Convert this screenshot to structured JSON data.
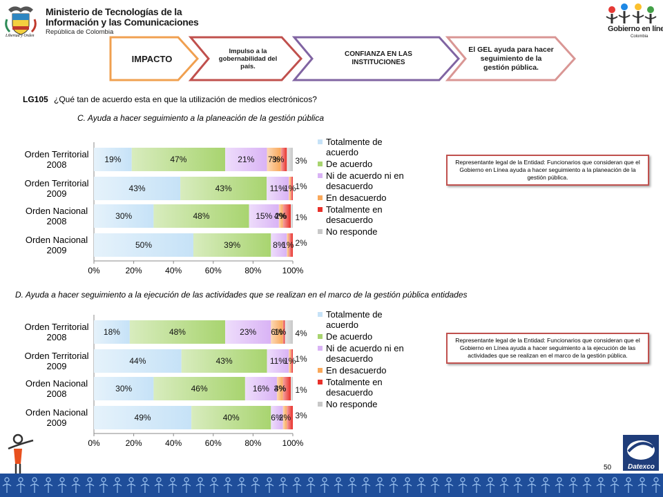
{
  "header": {
    "ministry_line1": "Ministerio de Tecnologías de la",
    "ministry_line2": "Información y las Comunicaciones",
    "ministry_line3": "República de Colombia",
    "motto": "Libertad y Orden",
    "gel_name": "Gobierno en línea",
    "gel_country": "Colombia"
  },
  "chevrons": [
    {
      "label": "IMPACTO",
      "fill": "#ffffff",
      "border": "#f0a050"
    },
    {
      "label": "Impulso a la gobernabilidad del país.",
      "fill": "#ffffff",
      "border": "#c0504d"
    },
    {
      "label": "CONFIANZA EN LAS INSTITUCIONES",
      "fill": "#ffffff",
      "border": "#8064a2"
    },
    {
      "label": "El GEL ayuda para hacer seguimiento de la gestión pública.",
      "fill": "#ffffff",
      "border": "#d99694"
    }
  ],
  "question": {
    "code": "LG105",
    "text": "¿Qué  tan de acuerdo esta en que la utilización de medios electrónicos?"
  },
  "notes": [
    "Representante legal de la Entidad: Funcionarios  que consideran que el Gobierno en Línea ayuda a hacer seguimiento a la planeación de la gestión pública.",
    "Representante legal de la Entidad: Funcionarios que consideran que el Gobierno en Línea ayuda a hacer seguimiento  a la ejecución de las actividades que se realizan en el marco de la gestión pública."
  ],
  "footer": {
    "page": "50",
    "brand": "Datexco"
  },
  "series_colors": [
    "#c6e2f7",
    "#a8d46f",
    "#d9b3f5",
    "#f9a85a",
    "#e8302a",
    "#c8c8c8"
  ],
  "chart_data": [
    {
      "type": "bar",
      "orientation": "horizontal",
      "stacked": "percent",
      "title": "C.  Ayuda a hacer seguimiento a la planeación de la gestión pública",
      "categories": [
        "Orden Territorial 2008",
        "Orden Territorial 2009",
        "Orden Nacional 2008",
        "Orden Nacional 2009"
      ],
      "series": [
        {
          "name": "Totalmente  de acuerdo",
          "values": [
            19,
            43,
            30,
            50
          ]
        },
        {
          "name": "De acuerdo",
          "values": [
            47,
            43,
            48,
            39
          ]
        },
        {
          "name": "Ni de acuerdo  ni en desacuerdo",
          "values": [
            21,
            11,
            15,
            8
          ]
        },
        {
          "name": " En desacuerdo",
          "values": [
            7,
            1,
            2,
            1
          ]
        },
        {
          "name": "Totalmente en desacuerdo",
          "values": [
            3,
            1,
            4,
            2
          ]
        },
        {
          "name": "No responde",
          "values": [
            3,
            0,
            1,
            0
          ]
        }
      ],
      "labels": [
        [
          "19%",
          "47%",
          "21%",
          "7%",
          "3%",
          "3%"
        ],
        [
          "43%",
          "43%",
          "11%",
          "1%",
          "1%",
          ""
        ],
        [
          "30%",
          "48%",
          "15%",
          "2%",
          "4%",
          "1%"
        ],
        [
          "50%",
          "39%",
          "8%",
          "1%",
          "2%",
          ""
        ]
      ],
      "xticks": [
        "0%",
        "20%",
        "40%",
        "60%",
        "80%",
        "100%"
      ],
      "xlim": [
        0,
        100
      ],
      "grid": false,
      "legend": "right"
    },
    {
      "type": "bar",
      "orientation": "horizontal",
      "stacked": "percent",
      "title": "D. Ayuda a hacer seguimiento  a la ejecución de las actividades que se realizan en el marco de la gestión pública entidades",
      "categories": [
        "Orden Territorial 2008",
        "Orden Territorial 2009",
        "Orden Nacional 2008",
        "Orden Nacional 2009"
      ],
      "series": [
        {
          "name": "Totalmente  de acuerdo",
          "values": [
            18,
            44,
            30,
            49
          ]
        },
        {
          "name": "De acuerdo",
          "values": [
            48,
            43,
            46,
            40
          ]
        },
        {
          "name": "Ni de acuerdo  ni en desacuerdo",
          "values": [
            23,
            11,
            16,
            6
          ]
        },
        {
          "name": " En desacuerdo",
          "values": [
            6,
            1,
            3,
            2
          ]
        },
        {
          "name": "Totalmente en desacuerdo",
          "values": [
            1,
            1,
            4,
            3
          ]
        },
        {
          "name": "No responde",
          "values": [
            4,
            0,
            1,
            0
          ]
        }
      ],
      "labels": [
        [
          "18%",
          "48%",
          "23%",
          "6%",
          "1%",
          "4%"
        ],
        [
          "44%",
          "43%",
          "11%",
          "1%",
          "1%",
          ""
        ],
        [
          "30%",
          "46%",
          "16%",
          "3%",
          "4%",
          "1%"
        ],
        [
          "49%",
          "40%",
          "6%",
          "2%",
          "3%",
          ""
        ]
      ],
      "xticks": [
        "0%",
        "20%",
        "40%",
        "60%",
        "80%",
        "100%"
      ],
      "xlim": [
        0,
        100
      ],
      "grid": false,
      "legend": "right"
    }
  ]
}
